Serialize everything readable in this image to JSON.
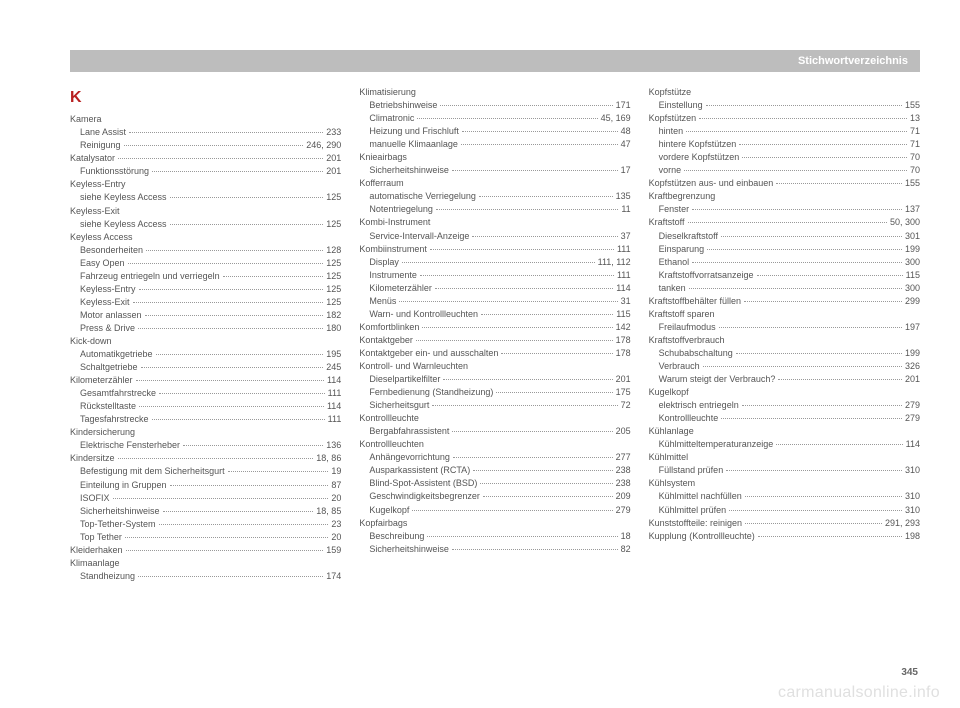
{
  "header": {
    "title": "Stichwortverzeichnis"
  },
  "section_letter": "K",
  "page_number": "345",
  "watermark": "carmanualsonline.info",
  "columns": [
    [
      {
        "label": "Kamera",
        "page": "",
        "sub": false,
        "nopage": true
      },
      {
        "label": "Lane Assist",
        "page": "233",
        "sub": true
      },
      {
        "label": "Reinigung",
        "page": "246, 290",
        "sub": true
      },
      {
        "label": "Katalysator",
        "page": "201",
        "sub": false
      },
      {
        "label": "Funktionsstörung",
        "page": "201",
        "sub": true
      },
      {
        "label": "Keyless-Entry",
        "page": "",
        "sub": false,
        "nopage": true
      },
      {
        "label": "siehe Keyless Access",
        "page": "125",
        "sub": true
      },
      {
        "label": "Keyless-Exit",
        "page": "",
        "sub": false,
        "nopage": true
      },
      {
        "label": "siehe Keyless Access",
        "page": "125",
        "sub": true
      },
      {
        "label": "Keyless Access",
        "page": "",
        "sub": false,
        "nopage": true
      },
      {
        "label": "Besonderheiten",
        "page": "128",
        "sub": true
      },
      {
        "label": "Easy Open",
        "page": "125",
        "sub": true
      },
      {
        "label": "Fahrzeug entriegeln und verriegeln",
        "page": "125",
        "sub": true
      },
      {
        "label": "Keyless-Entry",
        "page": "125",
        "sub": true
      },
      {
        "label": "Keyless-Exit",
        "page": "125",
        "sub": true
      },
      {
        "label": "Motor anlassen",
        "page": "182",
        "sub": true
      },
      {
        "label": "Press & Drive",
        "page": "180",
        "sub": true
      },
      {
        "label": "Kick-down",
        "page": "",
        "sub": false,
        "nopage": true
      },
      {
        "label": "Automatikgetriebe",
        "page": "195",
        "sub": true
      },
      {
        "label": "Schaltgetriebe",
        "page": "245",
        "sub": true
      },
      {
        "label": "Kilometerzähler",
        "page": "114",
        "sub": false
      },
      {
        "label": "Gesamtfahrstrecke",
        "page": "111",
        "sub": true
      },
      {
        "label": "Rückstelltaste",
        "page": "114",
        "sub": true
      },
      {
        "label": "Tagesfahrstrecke",
        "page": "111",
        "sub": true
      },
      {
        "label": "Kindersicherung",
        "page": "",
        "sub": false,
        "nopage": true
      },
      {
        "label": "Elektrische Fensterheber",
        "page": "136",
        "sub": true
      },
      {
        "label": "Kindersitze",
        "page": "18, 86",
        "sub": false
      },
      {
        "label": "Befestigung mit dem Sicherheitsgurt",
        "page": "19",
        "sub": true
      },
      {
        "label": "Einteilung in Gruppen",
        "page": "87",
        "sub": true
      },
      {
        "label": "ISOFIX",
        "page": "20",
        "sub": true
      },
      {
        "label": "Sicherheitshinweise",
        "page": "18, 85",
        "sub": true
      },
      {
        "label": "Top-Tether-System",
        "page": "23",
        "sub": true
      },
      {
        "label": "Top Tether",
        "page": "20",
        "sub": true
      },
      {
        "label": "Kleiderhaken",
        "page": "159",
        "sub": false
      },
      {
        "label": "Klimaanlage",
        "page": "",
        "sub": false,
        "nopage": true
      },
      {
        "label": "Standheizung",
        "page": "174",
        "sub": true
      }
    ],
    [
      {
        "label": "Klimatisierung",
        "page": "",
        "sub": false,
        "nopage": true
      },
      {
        "label": "Betriebshinweise",
        "page": "171",
        "sub": true
      },
      {
        "label": "Climatronic",
        "page": "45, 169",
        "sub": true
      },
      {
        "label": "Heizung und Frischluft",
        "page": "48",
        "sub": true
      },
      {
        "label": "manuelle Klimaanlage",
        "page": "47",
        "sub": true
      },
      {
        "label": "Knieairbags",
        "page": "",
        "sub": false,
        "nopage": true
      },
      {
        "label": "Sicherheitshinweise",
        "page": "17",
        "sub": true
      },
      {
        "label": "Kofferraum",
        "page": "",
        "sub": false,
        "nopage": true
      },
      {
        "label": "automatische Verriegelung",
        "page": "135",
        "sub": true
      },
      {
        "label": "Notentriegelung",
        "page": "11",
        "sub": true
      },
      {
        "label": "Kombi-Instrument",
        "page": "",
        "sub": false,
        "nopage": true
      },
      {
        "label": "Service-Intervall-Anzeige",
        "page": "37",
        "sub": true
      },
      {
        "label": "Kombiinstrument",
        "page": "111",
        "sub": false
      },
      {
        "label": "Display",
        "page": "111, 112",
        "sub": true
      },
      {
        "label": "Instrumente",
        "page": "111",
        "sub": true
      },
      {
        "label": "Kilometerzähler",
        "page": "114",
        "sub": true
      },
      {
        "label": "Menüs",
        "page": "31",
        "sub": true
      },
      {
        "label": "Warn- und Kontrollleuchten",
        "page": "115",
        "sub": true
      },
      {
        "label": "Komfortblinken",
        "page": "142",
        "sub": false
      },
      {
        "label": "Kontaktgeber",
        "page": "178",
        "sub": false
      },
      {
        "label": "Kontaktgeber ein- und ausschalten",
        "page": "178",
        "sub": false
      },
      {
        "label": "Kontroll- und Warnleuchten",
        "page": "",
        "sub": false,
        "nopage": true
      },
      {
        "label": "Dieselpartikelfilter",
        "page": "201",
        "sub": true
      },
      {
        "label": "Fernbedienung (Standheizung)",
        "page": "175",
        "sub": true
      },
      {
        "label": "Sicherheitsgurt",
        "page": "72",
        "sub": true
      },
      {
        "label": "Kontrollleuchte",
        "page": "",
        "sub": false,
        "nopage": true
      },
      {
        "label": "Bergabfahrassistent",
        "page": "205",
        "sub": true
      },
      {
        "label": "Kontrollleuchten",
        "page": "",
        "sub": false,
        "nopage": true
      },
      {
        "label": "Anhängevorrichtung",
        "page": "277",
        "sub": true
      },
      {
        "label": "Ausparkassistent (RCTA)",
        "page": "238",
        "sub": true
      },
      {
        "label": "Blind-Spot-Assistent (BSD)",
        "page": "238",
        "sub": true
      },
      {
        "label": "Geschwindigkeitsbegrenzer",
        "page": "209",
        "sub": true
      },
      {
        "label": "Kugelkopf",
        "page": "279",
        "sub": true
      },
      {
        "label": "Kopfairbags",
        "page": "",
        "sub": false,
        "nopage": true
      },
      {
        "label": "Beschreibung",
        "page": "18",
        "sub": true
      },
      {
        "label": "Sicherheitshinweise",
        "page": "82",
        "sub": true
      }
    ],
    [
      {
        "label": "Kopfstütze",
        "page": "",
        "sub": false,
        "nopage": true
      },
      {
        "label": "Einstellung",
        "page": "155",
        "sub": true
      },
      {
        "label": "Kopfstützen",
        "page": "13",
        "sub": false
      },
      {
        "label": "hinten",
        "page": "71",
        "sub": true
      },
      {
        "label": "hintere Kopfstützen",
        "page": "71",
        "sub": true
      },
      {
        "label": "vordere Kopfstützen",
        "page": "70",
        "sub": true
      },
      {
        "label": "vorne",
        "page": "70",
        "sub": true
      },
      {
        "label": "Kopfstützen aus- und einbauen",
        "page": "155",
        "sub": false
      },
      {
        "label": "Kraftbegrenzung",
        "page": "",
        "sub": false,
        "nopage": true
      },
      {
        "label": "Fenster",
        "page": "137",
        "sub": true
      },
      {
        "label": "Kraftstoff",
        "page": "50, 300",
        "sub": false
      },
      {
        "label": "Dieselkraftstoff",
        "page": "301",
        "sub": true
      },
      {
        "label": "Einsparung",
        "page": "199",
        "sub": true
      },
      {
        "label": "Ethanol",
        "page": "300",
        "sub": true
      },
      {
        "label": "Kraftstoffvorratsanzeige",
        "page": "115",
        "sub": true
      },
      {
        "label": "tanken",
        "page": "300",
        "sub": true
      },
      {
        "label": "Kraftstoffbehälter füllen",
        "page": "299",
        "sub": false
      },
      {
        "label": "Kraftstoff sparen",
        "page": "",
        "sub": false,
        "nopage": true
      },
      {
        "label": "Freilaufmodus",
        "page": "197",
        "sub": true
      },
      {
        "label": "Kraftstoffverbrauch",
        "page": "",
        "sub": false,
        "nopage": true
      },
      {
        "label": "Schubabschaltung",
        "page": "199",
        "sub": true
      },
      {
        "label": "Verbrauch",
        "page": "326",
        "sub": true
      },
      {
        "label": "Warum steigt der Verbrauch?",
        "page": "201",
        "sub": true
      },
      {
        "label": "Kugelkopf",
        "page": "",
        "sub": false,
        "nopage": true
      },
      {
        "label": "elektrisch entriegeln",
        "page": "279",
        "sub": true
      },
      {
        "label": "Kontrollleuchte",
        "page": "279",
        "sub": true
      },
      {
        "label": "Kühlanlage",
        "page": "",
        "sub": false,
        "nopage": true
      },
      {
        "label": "Kühlmitteltemperaturanzeige",
        "page": "114",
        "sub": true
      },
      {
        "label": "Kühlmittel",
        "page": "",
        "sub": false,
        "nopage": true
      },
      {
        "label": "Füllstand prüfen",
        "page": "310",
        "sub": true
      },
      {
        "label": "Kühlsystem",
        "page": "",
        "sub": false,
        "nopage": true
      },
      {
        "label": "Kühlmittel nachfüllen",
        "page": "310",
        "sub": true
      },
      {
        "label": "Kühlmittel prüfen",
        "page": "310",
        "sub": true
      },
      {
        "label": "Kunststoffteile: reinigen",
        "page": "291, 293",
        "sub": false
      },
      {
        "label": "Kupplung (Kontrollleuchte)",
        "page": "198",
        "sub": false
      }
    ]
  ]
}
